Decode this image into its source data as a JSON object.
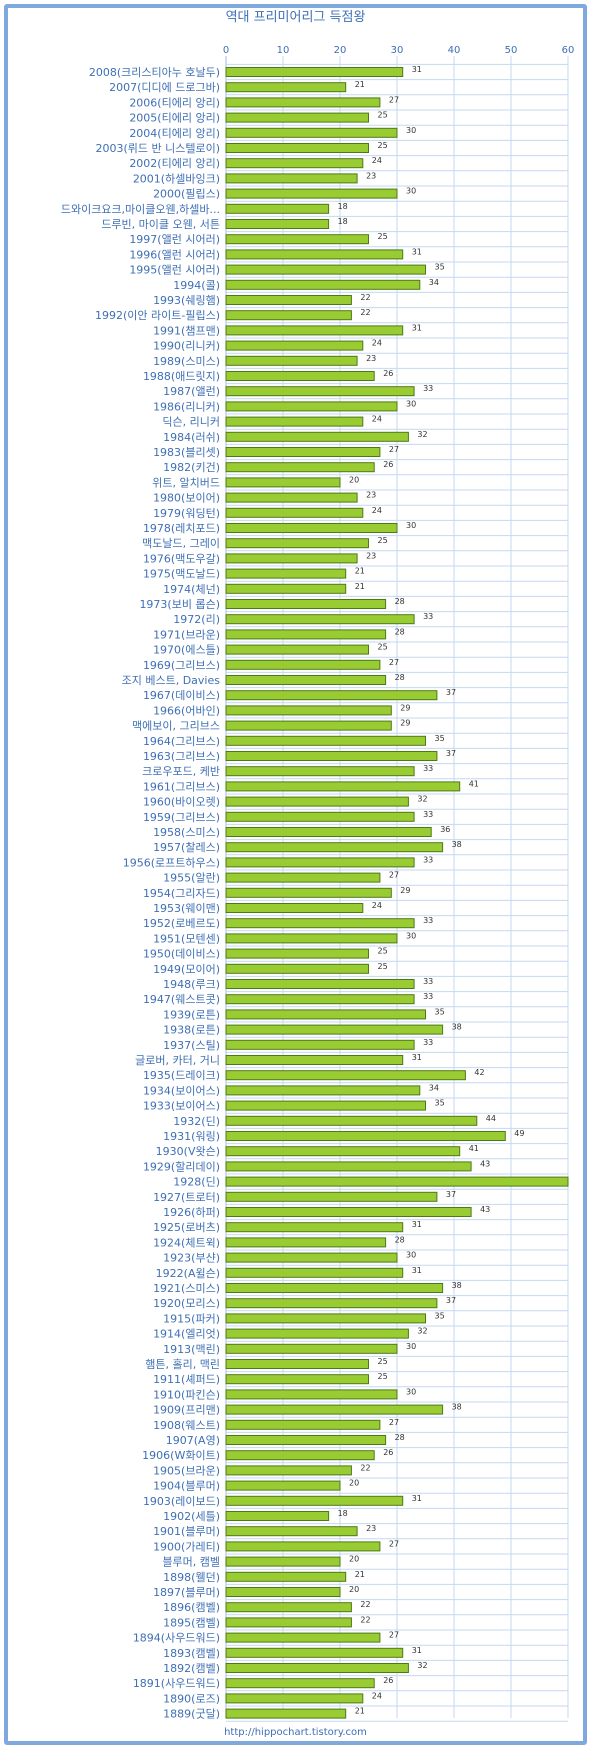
{
  "chart_data": {
    "type": "bar",
    "orientation": "horizontal",
    "title": "역대 프리미어리그 득점왕",
    "xlabel": "",
    "ylabel": "",
    "xlim": [
      0,
      60
    ],
    "xticks": [
      0,
      10,
      20,
      30,
      40,
      50,
      60
    ],
    "grid": true,
    "legend": "none",
    "colors": {
      "bar": "#99cc33",
      "bar_border": "#4d7a16",
      "grid": "#c3d9f1",
      "text": "#3f6fb5",
      "frame": "#7fa9dc"
    },
    "categories": [
      "2008(크리스티아누 호날두)",
      "2007(디디에 드로그바)",
      "2006(티에리 앙리)",
      "2005(티에리 앙리)",
      "2004(티에리 앙리)",
      "2003(뤼드 반 니스텔로이)",
      "2002(티에리 앙리)",
      "2001(하셀바잉크)",
      "2000(필립스)",
      "드와이크요크,마이클오웬,하셀바...",
      "드루빈, 마이클 오웬, 서튼",
      "1997(앨런 시어러)",
      "1996(앨런 시어러)",
      "1995(앨런 시어러)",
      "1994(콜)",
      "1993(쉐링햄)",
      "1992(이안 라이트-필립스)",
      "1991(챔프맨)",
      "1990(리니커)",
      "1989(스미스)",
      "1988(애드릿지)",
      "1987(앨런)",
      "1986(리니커)",
      "딕슨, 리니커",
      "1984(러쉬)",
      "1983(블리셋)",
      "1982(키건)",
      "위트, 알치버드",
      "1980(보이어)",
      "1979(워딩턴)",
      "1978(레치포드)",
      "맥도날드, 그레이",
      "1976(맥도우갈)",
      "1975(맥도날드)",
      "1974(체넌)",
      "1973(보비 롭슨)",
      "1972(리)",
      "1971(브라운)",
      "1970(에스틀)",
      "1969(그리브스)",
      "조지 베스트, Davies",
      "1967(데이비스)",
      "1966(어바인)",
      "맥에보이, 그리브스",
      "1964(그리브스)",
      "1963(그리브스)",
      "크로우포드, 케반",
      "1961(그리브스)",
      "1960(바이오렛)",
      "1959(그리브스)",
      "1958(스미스)",
      "1957(찰레스)",
      "1956(로프트하우스)",
      "1955(알란)",
      "1954(그리자드)",
      "1953(웨이맨)",
      "1952(로베르도)",
      "1951(모텐센)",
      "1950(데이비스)",
      "1949(모이어)",
      "1948(루크)",
      "1947(웨스트콧)",
      "1939(로튼)",
      "1938(로튼)",
      "1937(스틸)",
      "글로버, 카터, 거니",
      "1935(드레이크)",
      "1934(보이어스)",
      "1933(보이어스)",
      "1932(딘)",
      "1931(워링)",
      "1930(V왓슨)",
      "1929(할리데이)",
      "1928(딘)",
      "1927(트로터)",
      "1926(하퍼)",
      "1925(로버츠)",
      "1924(체트윅)",
      "1923(부샨)",
      "1922(A윌슨)",
      "1921(스미스)",
      "1920(모리스)",
      "1915(파커)",
      "1914(엘리엇)",
      "1913(맥린)",
      "햄튼, 홀리, 맥린",
      "1911(셰퍼드)",
      "1910(파킨슨)",
      "1909(프리맨)",
      "1908(웨스트)",
      "1907(A영)",
      "1906(W화이트)",
      "1905(브라운)",
      "1904(블루머)",
      "1903(레이보드)",
      "1902(세틀)",
      "1901(블루머)",
      "1900(가레티)",
      "블루머, 캠벨",
      "1898(웰던)",
      "1897(블루머)",
      "1896(캠벨)",
      "1895(캠벨)",
      "1894(사우드워드)",
      "1893(캠벨)",
      "1892(캠벨)",
      "1891(사우드워드)",
      "1890(로즈)",
      "1889(굿달)"
    ],
    "values": [
      31,
      21,
      27,
      25,
      30,
      25,
      24,
      23,
      30,
      18,
      18,
      25,
      31,
      35,
      34,
      22,
      22,
      31,
      24,
      23,
      26,
      33,
      30,
      24,
      32,
      27,
      26,
      20,
      23,
      24,
      30,
      25,
      23,
      21,
      21,
      28,
      33,
      28,
      25,
      27,
      28,
      37,
      29,
      29,
      35,
      37,
      33,
      41,
      32,
      33,
      36,
      38,
      33,
      27,
      29,
      24,
      33,
      30,
      25,
      25,
      33,
      33,
      35,
      38,
      33,
      31,
      42,
      34,
      35,
      44,
      49,
      41,
      43,
      60,
      37,
      43,
      31,
      28,
      30,
      31,
      38,
      37,
      35,
      32,
      30,
      25,
      25,
      30,
      38,
      27,
      28,
      26,
      22,
      20,
      31,
      18,
      23,
      27,
      20,
      21,
      20,
      22,
      22,
      27,
      31,
      32,
      26,
      24,
      21
    ],
    "data_labels": [
      "31",
      "21",
      "27",
      "25",
      "30",
      "25",
      "24",
      "23",
      "30",
      "18",
      "18",
      "25",
      "31",
      "35",
      "34",
      "22",
      "22",
      "31",
      "24",
      "23",
      "26",
      "33",
      "30",
      "24",
      "32",
      "27",
      "26",
      "20",
      "23",
      "24",
      "30",
      "25",
      "23",
      "21",
      "21",
      "28",
      "33",
      "28",
      "25",
      "27",
      "28",
      "37",
      "29",
      "29",
      "35",
      "37",
      "33",
      "41",
      "32",
      "33",
      "36",
      "38",
      "33",
      "27",
      "29",
      "24",
      "33",
      "30",
      "25",
      "25",
      "33",
      "33",
      "35",
      "38",
      "33",
      "31",
      "42",
      "34",
      "35",
      "44",
      "49",
      "41",
      "43",
      "",
      "37",
      "43",
      "31",
      "28",
      "30",
      "31",
      "38",
      "37",
      "35",
      "32",
      "30",
      "25",
      "25",
      "30",
      "38",
      "27",
      "28",
      "26",
      "22",
      "20",
      "31",
      "18",
      "23",
      "27",
      "20",
      "21",
      "20",
      "22",
      "22",
      "27",
      "31",
      "32",
      "26",
      "24",
      "21"
    ]
  },
  "footer": {
    "text": "http://hippochart.tistory.com"
  }
}
